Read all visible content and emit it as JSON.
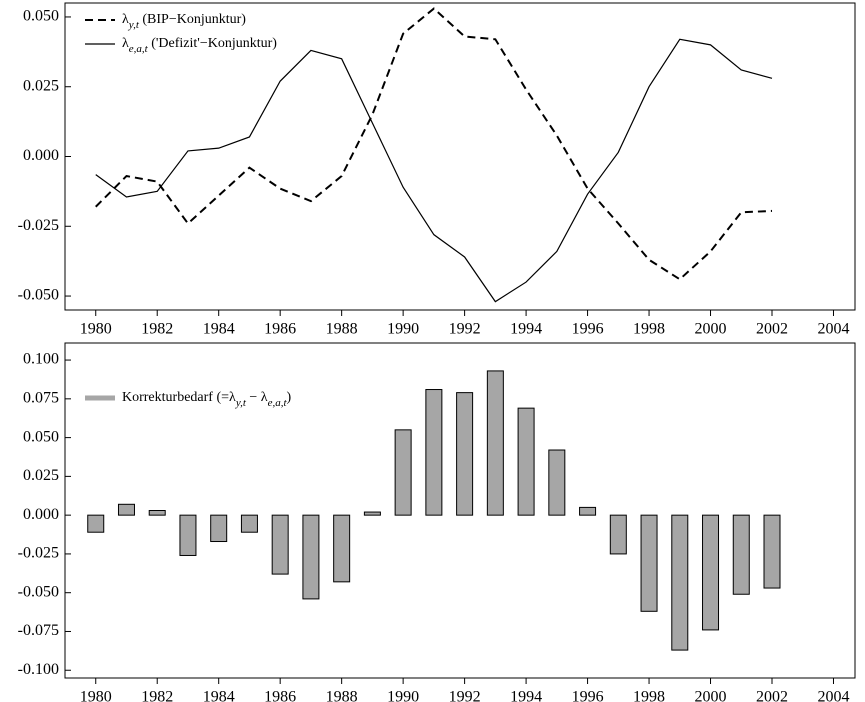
{
  "chart_data": [
    {
      "type": "line",
      "x": [
        1980,
        1981,
        1982,
        1983,
        1984,
        1985,
        1986,
        1987,
        1988,
        1989,
        1990,
        1991,
        1992,
        1993,
        1994,
        1995,
        1996,
        1997,
        1998,
        1999,
        2000,
        2001,
        2002
      ],
      "series": [
        {
          "name_parts": [
            {
              "text": "λ"
            },
            {
              "text": "y,t",
              "sub": true
            },
            {
              "text": " (BIP−Konjunktur)"
            }
          ],
          "color": "#000000",
          "dash": true,
          "values": [
            -0.018,
            -0.007,
            -0.009,
            -0.024,
            -0.014,
            -0.004,
            -0.0115,
            -0.016,
            -0.007,
            0.015,
            0.044,
            0.053,
            0.043,
            0.042,
            0.024,
            0.0075,
            -0.0115,
            -0.024,
            -0.037,
            -0.044,
            -0.034,
            -0.02,
            -0.0195
          ]
        },
        {
          "name_parts": [
            {
              "text": "λ"
            },
            {
              "text": "e,a,t",
              "sub": true
            },
            {
              "text": " ('Defizit'−Konjunktur)"
            }
          ],
          "color": "#000000",
          "dash": false,
          "values": [
            -0.0065,
            -0.0145,
            -0.0125,
            0.002,
            0.003,
            0.007,
            0.027,
            0.038,
            0.035,
            0.012,
            -0.011,
            -0.028,
            -0.036,
            -0.052,
            -0.045,
            -0.034,
            -0.0135,
            0.0015,
            0.025,
            0.042,
            0.04,
            0.031,
            0.028
          ]
        }
      ],
      "xlim": [
        1979,
        2004.7
      ],
      "xticks": [
        1980,
        1982,
        1984,
        1986,
        1988,
        1990,
        1992,
        1994,
        1996,
        1998,
        2000,
        2002,
        2004
      ],
      "ylim": [
        -0.055,
        0.055
      ],
      "yticks": [
        {
          "value": -0.05,
          "label": "-0.050"
        },
        {
          "value": -0.025,
          "label": "-0.025"
        },
        {
          "value": 0,
          "label": "0.000"
        },
        {
          "value": 0.025,
          "label": "0.025"
        },
        {
          "value": 0.05,
          "label": "0.050"
        }
      ]
    },
    {
      "type": "bar",
      "x": [
        1980,
        1981,
        1982,
        1983,
        1984,
        1985,
        1986,
        1987,
        1988,
        1989,
        1990,
        1991,
        1992,
        1993,
        1994,
        1995,
        1996,
        1997,
        1998,
        1999,
        2000,
        2001,
        2002
      ],
      "series": [
        {
          "name_parts": [
            {
              "text": "Korrekturbedarf (=λ"
            },
            {
              "text": "y,t",
              "sub": true
            },
            {
              "text": " − λ"
            },
            {
              "text": "e,a,t",
              "sub": true
            },
            {
              "text": ")"
            }
          ],
          "color": "#a6a6a6",
          "values": [
            -0.011,
            0.007,
            0.003,
            -0.026,
            -0.017,
            -0.011,
            -0.038,
            -0.054,
            -0.043,
            0.002,
            0.055,
            0.081,
            0.079,
            0.093,
            0.069,
            0.042,
            0.005,
            -0.025,
            -0.062,
            -0.087,
            -0.074,
            -0.051,
            -0.047
          ]
        }
      ],
      "xlim": [
        1979,
        2004.7
      ],
      "xticks": [
        1980,
        1982,
        1984,
        1986,
        1988,
        1990,
        1992,
        1994,
        1996,
        1998,
        2000,
        2002,
        2004
      ],
      "ylim": [
        -0.105,
        0.111
      ],
      "yticks": [
        {
          "value": -0.1,
          "label": "-0.100"
        },
        {
          "value": -0.075,
          "label": "-0.075"
        },
        {
          "value": -0.05,
          "label": "-0.050"
        },
        {
          "value": -0.025,
          "label": "-0.025"
        },
        {
          "value": 0,
          "label": "0.000"
        },
        {
          "value": 0.025,
          "label": "0.025"
        },
        {
          "value": 0.05,
          "label": "0.050"
        },
        {
          "value": 0.075,
          "label": "0.075"
        },
        {
          "value": 0.1,
          "label": "0.100"
        }
      ]
    }
  ]
}
